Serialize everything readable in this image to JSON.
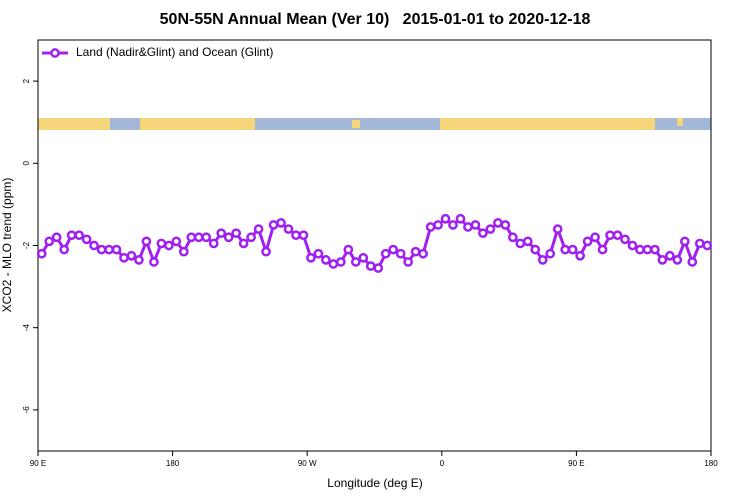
{
  "chart_data": {
    "type": "line",
    "title": "50N-55N Annual Mean (Ver 10)   2015-01-01 to 2020-12-18",
    "xlabel": "Longitude (deg E)",
    "ylabel": "XCO2 - MLO trend (ppm)",
    "xlim": [
      90,
      540
    ],
    "ylim": [
      -7,
      3
    ],
    "xticks": [
      {
        "value": 90,
        "label": "90 E"
      },
      180,
      {
        "value": 270,
        "label": "90 W"
      },
      {
        "value": 360,
        "label": "0"
      },
      {
        "value": 450,
        "label": "90 E"
      },
      {
        "value": 540,
        "label": "180"
      }
    ],
    "yticks": [
      -6,
      -4,
      -2,
      0,
      2
    ],
    "legend": "top-left",
    "x": [
      92.5,
      97.5,
      102.5,
      107.5,
      112.5,
      117.5,
      122.5,
      127.5,
      132.5,
      137.5,
      142.5,
      147.5,
      152.5,
      157.5,
      162.5,
      167.5,
      172.5,
      177.5,
      182.5,
      187.5,
      192.5,
      197.5,
      202.5,
      207.5,
      212.5,
      217.5,
      222.5,
      227.5,
      232.5,
      237.5,
      242.5,
      247.5,
      252.5,
      257.5,
      262.5,
      267.5,
      272.5,
      277.5,
      282.5,
      287.5,
      292.5,
      297.5,
      302.5,
      307.5,
      312.5,
      317.5,
      322.5,
      327.5,
      332.5,
      337.5,
      342.5,
      347.5,
      352.5,
      357.5,
      362.5,
      367.5,
      372.5,
      377.5,
      382.5,
      387.5,
      392.5,
      397.5,
      402.5,
      407.5,
      412.5,
      417.5,
      422.5,
      427.5,
      432.5,
      437.5,
      442.5,
      447.5,
      452.5,
      457.5,
      462.5,
      467.5,
      472.5,
      477.5,
      482.5,
      487.5,
      492.5,
      497.5,
      502.5,
      507.5,
      512.5,
      517.5,
      522.5,
      527.5,
      532.5,
      537.5
    ],
    "series": [
      {
        "name": "Land (Nadir&Glint) and Ocean (Glint)",
        "color": "#a020f0",
        "values": [
          -2.2,
          -1.9,
          -1.8,
          -2.1,
          -1.75,
          -1.75,
          -1.85,
          -2.0,
          -2.1,
          -2.1,
          -2.1,
          -2.3,
          -2.25,
          -2.35,
          -1.9,
          -2.4,
          -1.95,
          -2.0,
          -1.9,
          -2.15,
          -1.8,
          -1.8,
          -1.8,
          -1.95,
          -1.7,
          -1.8,
          -1.7,
          -1.95,
          -1.8,
          -1.6,
          -2.15,
          -1.5,
          -1.45,
          -1.6,
          -1.75,
          -1.75,
          -2.3,
          -2.2,
          -2.35,
          -2.45,
          -2.4,
          -2.1,
          -2.4,
          -2.3,
          -2.5,
          -2.55,
          -2.2,
          -2.1,
          -2.2,
          -2.4,
          -2.15,
          -2.2,
          -1.55,
          -1.5,
          -1.35,
          -1.5,
          -1.35,
          -1.55,
          -1.5,
          -1.7,
          -1.6,
          -1.45,
          -1.5,
          -1.8,
          -1.95,
          -1.9,
          -2.1,
          -2.35,
          -2.2,
          -1.6,
          -2.1,
          -2.1,
          -2.25,
          -1.9,
          -1.8,
          -2.1,
          -1.75,
          -1.75,
          -1.85,
          -2.0,
          -2.1,
          -2.1,
          -2.1,
          -2.35,
          -2.25,
          -2.35,
          -1.9,
          -2.4,
          -1.95,
          -2.0
        ]
      }
    ]
  }
}
